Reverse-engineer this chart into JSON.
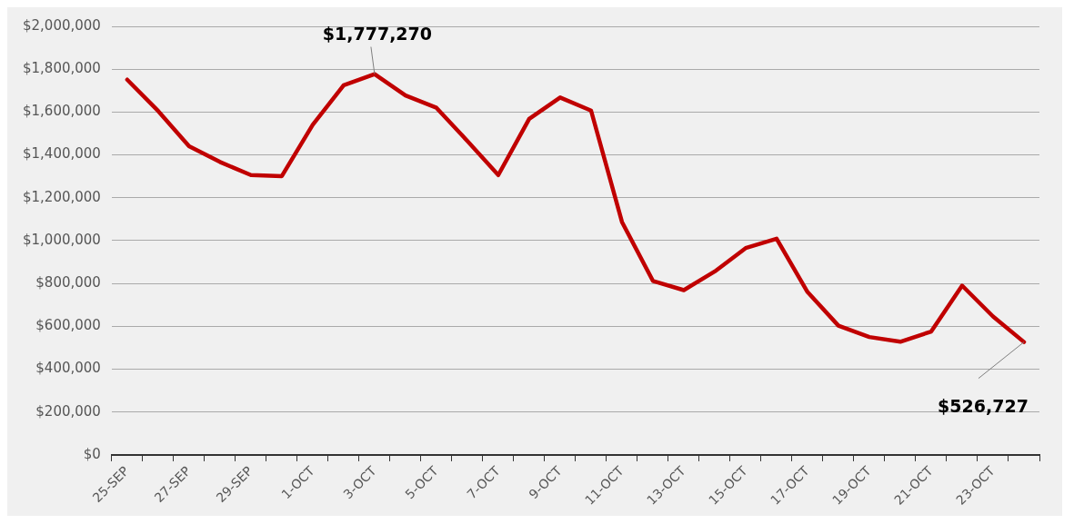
{
  "chart_data": {
    "type": "line",
    "categories": [
      "25-SEP",
      null,
      "27-SEP",
      null,
      "29-SEP",
      null,
      "1-OCT",
      null,
      "3-OCT",
      null,
      "5-OCT",
      null,
      "7-OCT",
      null,
      "9-OCT",
      null,
      "11-OCT",
      null,
      "13-OCT",
      null,
      "15-OCT",
      null,
      "17-OCT",
      null,
      "19-OCT",
      null,
      "21-OCT",
      null,
      "23-OCT",
      null
    ],
    "series": [
      {
        "color": "#c00000",
        "values": [
          1751000,
          1605000,
          1441000,
          1367000,
          1306000,
          1301000,
          1541000,
          1725000,
          1777270,
          1677000,
          1620000,
          1465000,
          1306000,
          1568000,
          1668000,
          1607000,
          1087000,
          812000,
          769000,
          856000,
          965000,
          1009000,
          760000,
          603000,
          550000,
          528000,
          576000,
          790000,
          646000,
          526727
        ],
        "value_labels": [
          null,
          null,
          null,
          null,
          null,
          null,
          null,
          null,
          "$1,777,270",
          null,
          null,
          null,
          null,
          null,
          null,
          null,
          null,
          null,
          null,
          null,
          null,
          null,
          null,
          null,
          null,
          null,
          null,
          null,
          null,
          "$526,727"
        ]
      }
    ],
    "ylim": [
      0,
      2000000
    ],
    "yticks": [
      {
        "value": 0,
        "label": "$0"
      },
      {
        "value": 200000,
        "label": "$200,000"
      },
      {
        "value": 400000,
        "label": "$400,000"
      },
      {
        "value": 600000,
        "label": "$600,000"
      },
      {
        "value": 800000,
        "label": "$800,000"
      },
      {
        "value": 1000000,
        "label": "$1,000,000"
      },
      {
        "value": 1200000,
        "label": "$1,200,000"
      },
      {
        "value": 1400000,
        "label": "$1,400,000"
      },
      {
        "value": 1600000,
        "label": "$1,600,000"
      },
      {
        "value": 1800000,
        "label": "$1,800,000"
      },
      {
        "value": 2000000,
        "label": "$2,000,000"
      }
    ],
    "grid": "y",
    "legend": false,
    "marker": "none",
    "line_style": "solid"
  }
}
